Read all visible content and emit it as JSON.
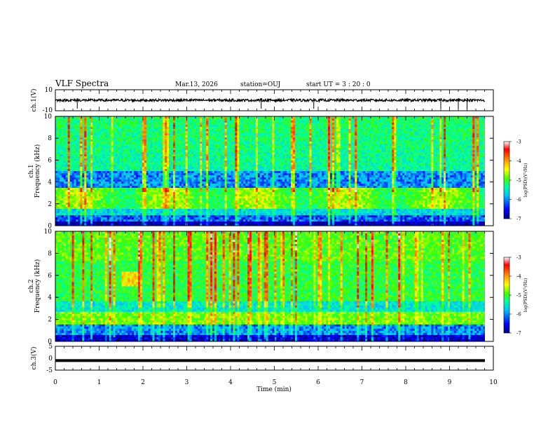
{
  "header": {
    "title": "VLF Spectra",
    "date": "Mar.13, 2026",
    "station": "station=OUJ",
    "start_ut": "start UT =  3 : 20 : 0"
  },
  "chart_data": [
    {
      "type": "line",
      "panel": "ch1-waveform",
      "ylabel": "ch.1(V)",
      "ylim": [
        -10,
        10
      ],
      "yticks": [
        "10",
        "-10"
      ],
      "xlim": [
        0,
        10
      ],
      "series": [
        {
          "values": [
            -1,
            1
          ]
        }
      ],
      "spikes_min": [
        0.5,
        4.7,
        5.9,
        8.8,
        9.2,
        9.4
      ]
    },
    {
      "type": "heatmap",
      "panel": "ch1-spectrogram",
      "ylabel": "ch.1 Frequency (kHz)",
      "ylim": [
        0,
        10
      ],
      "yticks": [
        "0",
        "2",
        "4",
        "6",
        "8",
        "10"
      ],
      "xlim": [
        0,
        10
      ],
      "zlim": [
        -7,
        -3
      ],
      "colorbar_label": "log(PSD)(V²/Hz)",
      "colorbar_ticks": [
        "-3",
        "-4",
        "-5",
        "-6",
        "-7"
      ]
    },
    {
      "type": "heatmap",
      "panel": "ch2-spectrogram",
      "ylabel": "ch.2 Frequency (kHz)",
      "ylim": [
        0,
        10
      ],
      "yticks": [
        "0",
        "2",
        "4",
        "6",
        "8",
        "10"
      ],
      "xlim": [
        0,
        10
      ],
      "zlim": [
        -7,
        -3
      ],
      "colorbar_label": "log(PSD)(V²/Hz)",
      "colorbar_ticks": [
        "-3",
        "-4",
        "-5",
        "-6",
        "-7"
      ]
    },
    {
      "type": "line",
      "panel": "ch3-waveform",
      "ylabel": "ch.3(V)",
      "ylim": [
        -5,
        5
      ],
      "yticks": [
        "5",
        "0",
        "-5"
      ],
      "xlim": [
        0,
        10
      ],
      "series": [
        {
          "values": [
            -1,
            -1
          ]
        }
      ]
    }
  ],
  "x_axis": {
    "label": "Time (min)",
    "ticks": [
      "0",
      "1",
      "2",
      "3",
      "4",
      "5",
      "6",
      "7",
      "8",
      "9",
      "10"
    ]
  },
  "colors": {
    "background": "#ffffff",
    "axis": "#000000",
    "colormap": [
      "#000080",
      "#0000ff",
      "#00c0ff",
      "#00ffa0",
      "#40ff00",
      "#ffff00",
      "#ff8000",
      "#ff0000",
      "#ffffff"
    ]
  }
}
